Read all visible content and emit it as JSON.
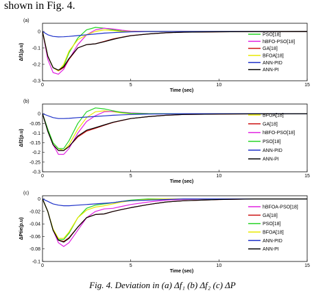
{
  "page": {
    "intro_text": "shown in Fig. 4.",
    "caption": "Fig. 4. Deviation in (a) Δf₁ (b) Δf₂ (c) ΔP"
  },
  "colors": {
    "PSO[18]": "#22d322",
    "hBFO-PSO[18]": "#e020e0",
    "hBFOA-PSO[18]": "#e020e0",
    "GA[18]": "#cc1010",
    "BFOA[18]": "#e8e800",
    "ANN-PID": "#1a2ec8",
    "ANN-PI": "#000000"
  },
  "chart_data": [
    {
      "type": "line",
      "panel_label": "(a)",
      "xlabel": "Time (sec)",
      "ylabel": "Δf1(p.u)",
      "xlim": [
        0,
        15
      ],
      "ylim": [
        -0.3,
        0.05
      ],
      "xticks": [
        "0",
        "5",
        "10",
        "15"
      ],
      "yticks": [
        "0",
        "-0.1",
        "-0.2",
        "-0.3"
      ],
      "ytick_values": [
        0,
        -0.1,
        -0.2,
        -0.3
      ],
      "legend_position": "right",
      "x": [
        0,
        0.3,
        0.6,
        0.9,
        1.2,
        1.5,
        2.0,
        2.5,
        3.0,
        3.5,
        4.0,
        4.5,
        5.0,
        6.0,
        7.0,
        8.0,
        10.0,
        12.0,
        15.0
      ],
      "series": [
        {
          "name": "PSO[18]",
          "values": [
            0,
            -0.15,
            -0.22,
            -0.24,
            -0.21,
            -0.13,
            -0.04,
            0.01,
            0.025,
            0.02,
            0.01,
            0.003,
            0,
            0,
            0,
            0,
            0,
            0,
            0
          ]
        },
        {
          "name": "hBFO-PSO[18]",
          "values": [
            0,
            -0.17,
            -0.25,
            -0.26,
            -0.23,
            -0.17,
            -0.08,
            -0.02,
            0.01,
            0.02,
            0.015,
            0.008,
            0.003,
            0,
            0,
            0,
            0,
            0,
            0
          ]
        },
        {
          "name": "GA[18]",
          "values": [
            0,
            -0.15,
            -0.22,
            -0.24,
            -0.22,
            -0.17,
            -0.1,
            -0.08,
            -0.075,
            -0.06,
            -0.045,
            -0.035,
            -0.025,
            -0.015,
            -0.008,
            -0.004,
            -0.002,
            -0.001,
            0
          ]
        },
        {
          "name": "BFOA[18]",
          "values": [
            0,
            -0.15,
            -0.22,
            -0.24,
            -0.2,
            -0.12,
            -0.05,
            -0.02,
            0.0,
            0.01,
            0.005,
            0,
            0,
            0,
            0,
            0,
            0,
            0,
            0
          ]
        },
        {
          "name": "ANN-PID",
          "values": [
            0,
            -0.02,
            -0.03,
            -0.033,
            -0.032,
            -0.03,
            -0.025,
            -0.02,
            -0.015,
            -0.01,
            -0.007,
            -0.004,
            -0.002,
            0,
            0,
            0,
            0,
            0,
            0
          ]
        },
        {
          "name": "ANN-PI",
          "values": [
            0,
            -0.15,
            -0.22,
            -0.235,
            -0.215,
            -0.165,
            -0.1,
            -0.08,
            -0.075,
            -0.062,
            -0.048,
            -0.036,
            -0.026,
            -0.015,
            -0.008,
            -0.004,
            -0.002,
            -0.001,
            0
          ]
        }
      ]
    },
    {
      "type": "line",
      "panel_label": "(b)",
      "xlabel": "Time (sec)",
      "ylabel": "Δf2(p.u)",
      "xlim": [
        0,
        15
      ],
      "ylim": [
        -0.3,
        0.05
      ],
      "xticks": [
        "0",
        "5",
        "10",
        "15"
      ],
      "yticks": [
        "0",
        "-0.05",
        "-0.1",
        "-0.15",
        "-0.2",
        "-0.25",
        "-0.3"
      ],
      "ytick_values": [
        0,
        -0.05,
        -0.1,
        -0.15,
        -0.2,
        -0.25,
        -0.3
      ],
      "legend_position": "right",
      "x": [
        0,
        0.3,
        0.6,
        0.9,
        1.2,
        1.5,
        2.0,
        2.5,
        3.0,
        3.5,
        4.0,
        4.5,
        5.0,
        6.0,
        7.0,
        8.0,
        10.0,
        12.0,
        15.0
      ],
      "series": [
        {
          "name": "BFOA[18]",
          "values": [
            0,
            -0.08,
            -0.15,
            -0.18,
            -0.19,
            -0.16,
            -0.08,
            -0.02,
            0.01,
            0.015,
            0.01,
            0.004,
            0,
            0,
            0,
            0,
            0,
            0,
            0
          ]
        },
        {
          "name": "GA[18]",
          "values": [
            0,
            -0.09,
            -0.16,
            -0.19,
            -0.19,
            -0.17,
            -0.12,
            -0.09,
            -0.075,
            -0.06,
            -0.045,
            -0.035,
            -0.025,
            -0.015,
            -0.008,
            -0.004,
            -0.002,
            -0.001,
            0
          ]
        },
        {
          "name": "hBFO-PSO[18]",
          "values": [
            0,
            -0.08,
            -0.16,
            -0.21,
            -0.21,
            -0.18,
            -0.1,
            -0.04,
            -0.01,
            0.01,
            0.012,
            0.008,
            0.004,
            0.001,
            0,
            0,
            0,
            0,
            0
          ]
        },
        {
          "name": "PSO[18]",
          "values": [
            0,
            -0.08,
            -0.15,
            -0.18,
            -0.18,
            -0.14,
            -0.05,
            0.01,
            0.03,
            0.025,
            0.015,
            0.006,
            0.002,
            0,
            0,
            0,
            0,
            0,
            0
          ]
        },
        {
          "name": "ANN-PID",
          "values": [
            0,
            -0.01,
            -0.02,
            -0.025,
            -0.025,
            -0.024,
            -0.02,
            -0.017,
            -0.014,
            -0.011,
            -0.008,
            -0.006,
            -0.004,
            -0.002,
            -0.001,
            0,
            0,
            0,
            0
          ]
        },
        {
          "name": "ANN-PI",
          "values": [
            0,
            -0.09,
            -0.16,
            -0.19,
            -0.19,
            -0.17,
            -0.115,
            -0.085,
            -0.072,
            -0.058,
            -0.044,
            -0.034,
            -0.025,
            -0.015,
            -0.008,
            -0.004,
            -0.002,
            -0.001,
            0
          ]
        }
      ]
    },
    {
      "type": "line",
      "panel_label": "(c)",
      "xlabel": "Time (sec)",
      "ylabel": "ΔPtie(p.u)",
      "xlim": [
        0,
        15
      ],
      "ylim": [
        -0.1,
        0.005
      ],
      "xticks": [
        "0",
        "5",
        "10",
        "15"
      ],
      "yticks": [
        "0",
        "-0.02",
        "-0.04",
        "-0.06",
        "-0.08",
        "-0.1"
      ],
      "ytick_values": [
        0,
        -0.02,
        -0.04,
        -0.06,
        -0.08,
        -0.1
      ],
      "legend_position": "right",
      "x": [
        0,
        0.3,
        0.6,
        0.9,
        1.2,
        1.5,
        2.0,
        2.5,
        3.0,
        3.5,
        4.0,
        4.5,
        5.0,
        6.0,
        7.0,
        8.0,
        10.0,
        12.0,
        15.0
      ],
      "series": [
        {
          "name": "hBFOA-PSO[18]",
          "values": [
            0,
            -0.02,
            -0.05,
            -0.07,
            -0.076,
            -0.07,
            -0.05,
            -0.03,
            -0.02,
            -0.016,
            -0.015,
            -0.012,
            -0.009,
            -0.005,
            -0.002,
            -0.001,
            0,
            0,
            0
          ]
        },
        {
          "name": "GA[18]",
          "values": [
            0,
            -0.02,
            -0.05,
            -0.066,
            -0.068,
            -0.062,
            -0.045,
            -0.03,
            -0.025,
            -0.024,
            -0.02,
            -0.017,
            -0.014,
            -0.009,
            -0.005,
            -0.003,
            -0.001,
            0,
            0
          ]
        },
        {
          "name": "PSO[18]",
          "values": [
            0,
            -0.02,
            -0.05,
            -0.065,
            -0.065,
            -0.055,
            -0.03,
            -0.015,
            -0.01,
            -0.008,
            -0.006,
            -0.004,
            -0.002,
            0,
            0,
            0,
            0,
            0,
            0
          ]
        },
        {
          "name": "BFOA[18]",
          "values": [
            0,
            -0.02,
            -0.048,
            -0.063,
            -0.063,
            -0.053,
            -0.03,
            -0.018,
            -0.013,
            -0.011,
            -0.008,
            -0.005,
            -0.003,
            -0.001,
            0,
            0,
            0,
            0,
            0
          ]
        },
        {
          "name": "ANN-PID",
          "values": [
            0,
            -0.004,
            -0.008,
            -0.01,
            -0.011,
            -0.011,
            -0.01,
            -0.009,
            -0.008,
            -0.007,
            -0.006,
            -0.004,
            -0.003,
            -0.002,
            -0.001,
            0,
            0,
            0,
            0
          ]
        },
        {
          "name": "ANN-PI",
          "values": [
            0,
            -0.02,
            -0.05,
            -0.066,
            -0.069,
            -0.063,
            -0.045,
            -0.03,
            -0.025,
            -0.024,
            -0.02,
            -0.017,
            -0.014,
            -0.009,
            -0.005,
            -0.003,
            -0.001,
            0,
            0
          ]
        }
      ]
    }
  ]
}
